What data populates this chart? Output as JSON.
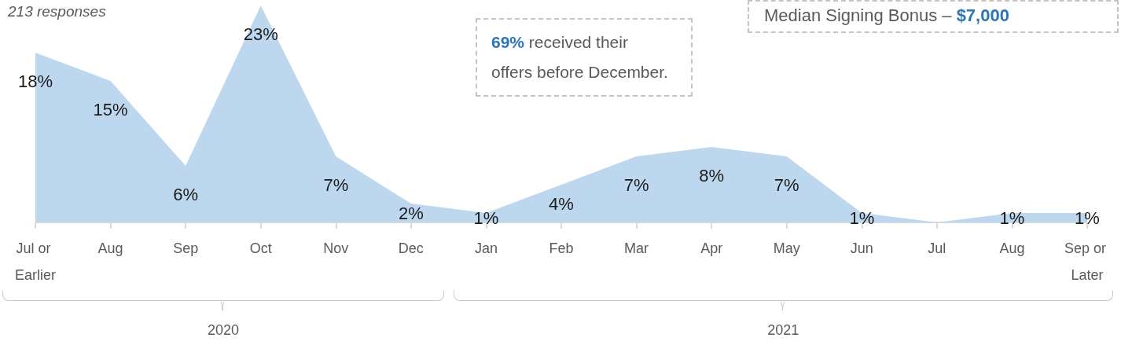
{
  "chart_data": {
    "type": "area",
    "subtitle": "213 responses",
    "categories": [
      "Jul or Earlier",
      "Aug",
      "Sep",
      "Oct",
      "Nov",
      "Dec",
      "Jan",
      "Feb",
      "Mar",
      "Apr",
      "May",
      "Jun",
      "Jul",
      "Aug",
      "Sep or Later"
    ],
    "values": [
      18,
      15,
      6,
      23,
      7,
      2,
      1,
      4,
      7,
      8,
      7,
      1,
      0,
      1,
      1
    ],
    "value_labels": [
      "18%",
      "15%",
      "6%",
      "23%",
      "7%",
      "2%",
      "1%",
      "4%",
      "7%",
      "8%",
      "7%",
      "1%",
      null,
      "1%",
      "1%"
    ],
    "color": "#bdd7ee",
    "annotations": [
      "69% received their offers before December.",
      "Median Signing Bonus – $7,000",
      "2020",
      "2021"
    ],
    "tick_labels": "x",
    "grid": false
  }
}
